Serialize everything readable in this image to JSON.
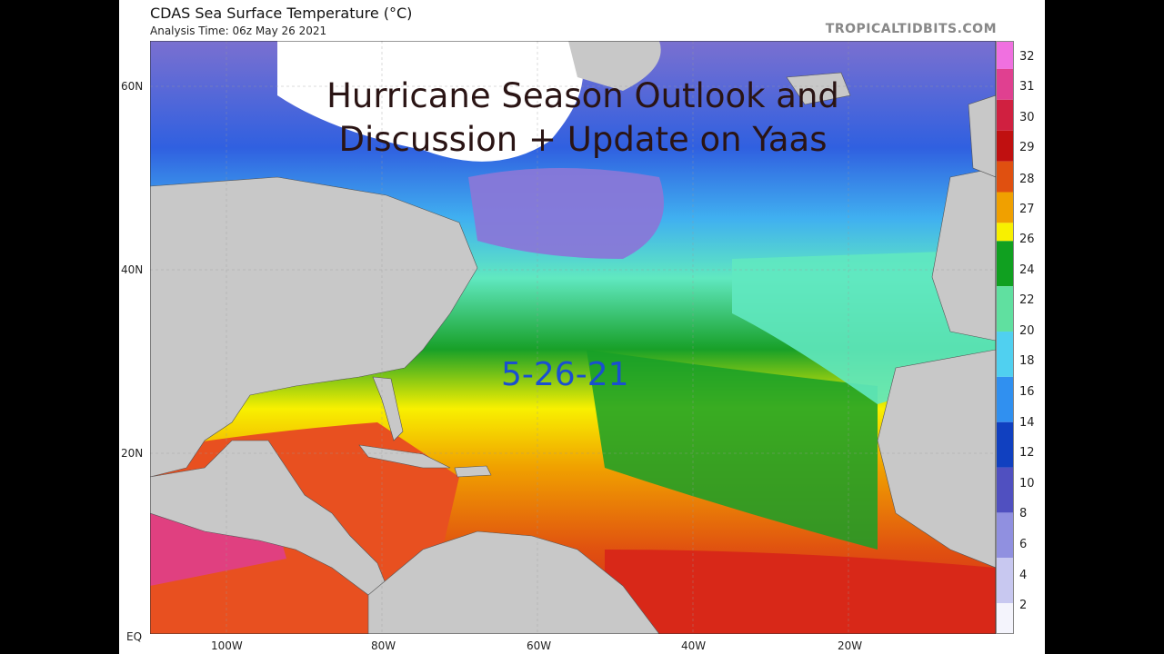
{
  "map": {
    "title": "CDAS Sea Surface Temperature (°C)",
    "subtitle": "Analysis Time: 06z May 26 2021",
    "brand": "TROPICALTIDBITS.COM",
    "overlay_title_line1": "Hurricane Season Outlook and",
    "overlay_title_line2": "Discussion + Update on Yaas",
    "date_stamp": "5-26-21",
    "lat_labels": [
      "60N",
      "40N",
      "20N",
      "EQ"
    ],
    "lon_labels": [
      "100W",
      "80W",
      "60W",
      "40W",
      "20W"
    ],
    "colorbar_labels": [
      "32",
      "31",
      "30",
      "29",
      "28",
      "27",
      "26",
      "24",
      "22",
      "20",
      "18",
      "16",
      "14",
      "12",
      "10",
      "8",
      "6",
      "4",
      "2"
    ],
    "colors": {
      "land": "#c8c8c8",
      "ice": "#ffffff",
      "cold": "#8080d8",
      "cool_blue": "#2050d0",
      "mild": "#40c8e0",
      "mint": "#60e0b0",
      "green": "#10a020",
      "yellow": "#ffff00",
      "orange": "#f0a000",
      "dark_orange": "#e06010",
      "red": "#d02020",
      "hot_pink": "#e04080"
    }
  }
}
